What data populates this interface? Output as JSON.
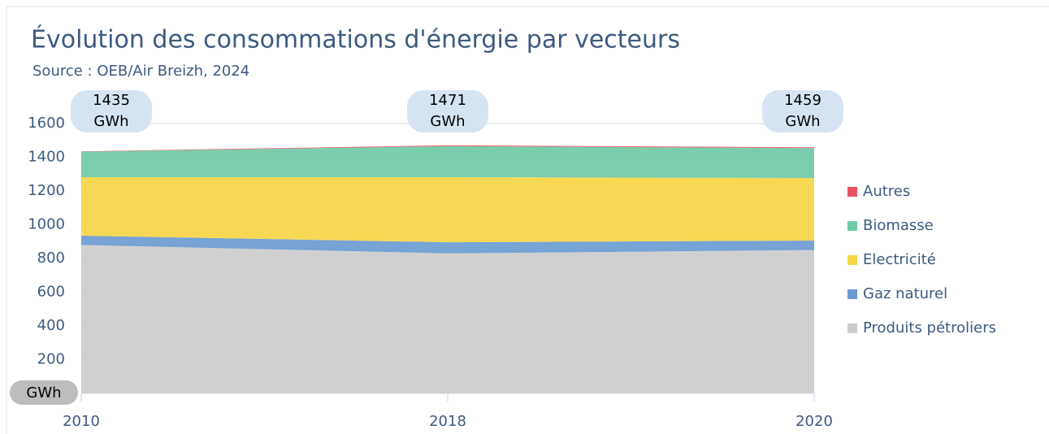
{
  "chart_data": {
    "type": "stacked_area",
    "title": "Évolution des consommations d'énergie par vecteurs",
    "subtitle": "Source : OEB/Air Breizh, 2024",
    "y_unit_label": "GWh",
    "categories": [
      "2010",
      "2018",
      "2020"
    ],
    "series": [
      {
        "name": "Produits pétroliers",
        "color": "#cccccc",
        "values": [
          880,
          830,
          850
        ]
      },
      {
        "name": "Gaz naturel",
        "color": "#6b9bd1",
        "values": [
          55,
          66,
          56
        ]
      },
      {
        "name": "Electricité",
        "color": "#f5d547",
        "values": [
          347,
          386,
          371
        ]
      },
      {
        "name": "Biomasse",
        "color": "#6fc9a6",
        "values": [
          151,
          184,
          177
        ]
      },
      {
        "name": "Autres",
        "color": "#e8525f",
        "values": [
          2,
          5,
          5
        ]
      }
    ],
    "totals": [
      1435,
      1471,
      1459
    ],
    "total_labels": [
      "1435 GWh",
      "1471 GWh",
      "1459 GWh"
    ],
    "ylim": [
      0,
      1600
    ],
    "yticks": [
      200,
      400,
      600,
      800,
      1000,
      1200,
      1400,
      1600
    ],
    "grid": true,
    "legend": "right"
  }
}
